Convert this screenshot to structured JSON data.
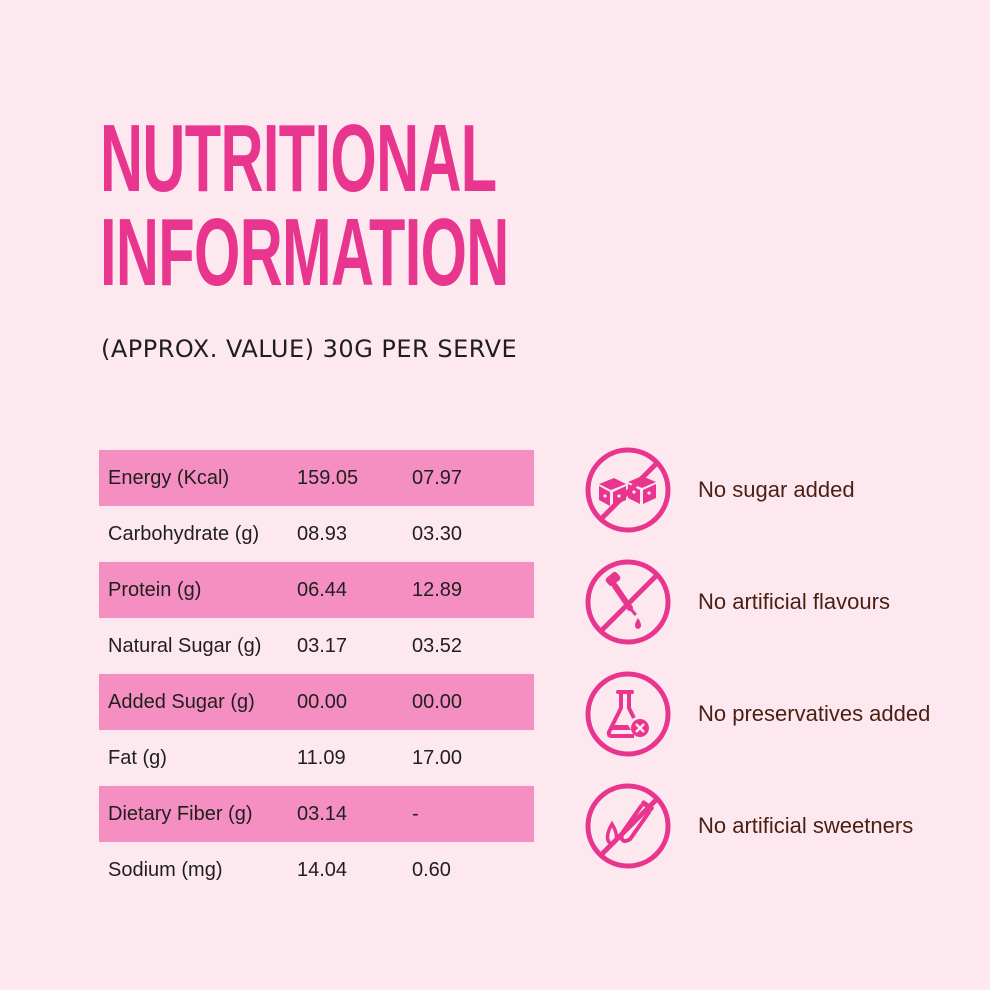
{
  "title": {
    "line1": "NUTRITIONAL",
    "line2": "INFORMATION"
  },
  "subtitle": "(APPROX. VALUE) 30G PER SERVE",
  "table": {
    "rows": [
      {
        "label": "Energy (Kcal)",
        "v1": "159.05",
        "v2": "07.97"
      },
      {
        "label": "Carbohydrate (g)",
        "v1": "08.93",
        "v2": "03.30"
      },
      {
        "label": "Protein (g)",
        "v1": "06.44",
        "v2": "12.89"
      },
      {
        "label": "Natural Sugar (g)",
        "v1": "03.17",
        "v2": "03.52"
      },
      {
        "label": "Added Sugar (g)",
        "v1": "00.00",
        "v2": "00.00"
      },
      {
        "label": "Fat (g)",
        "v1": "11.09",
        "v2": "17.00"
      },
      {
        "label": "Dietary Fiber (g)",
        "v1": "03.14",
        "v2": "-"
      },
      {
        "label": "Sodium (mg)",
        "v1": "14.04",
        "v2": "0.60"
      }
    ]
  },
  "features": [
    {
      "icon": "no-sugar-cubes-icon",
      "label": "No sugar added"
    },
    {
      "icon": "no-dropper-icon",
      "label": "No artificial flavours"
    },
    {
      "icon": "no-preservatives-flask-icon",
      "label": "No preservatives added"
    },
    {
      "icon": "no-sweetener-test-tube-icon",
      "label": "No artificial sweetners"
    }
  ],
  "colors": {
    "background": "#fde8f0",
    "accent": "#e8368f",
    "row_shade": "#f58fc1",
    "feature_text": "#4a1f12"
  }
}
